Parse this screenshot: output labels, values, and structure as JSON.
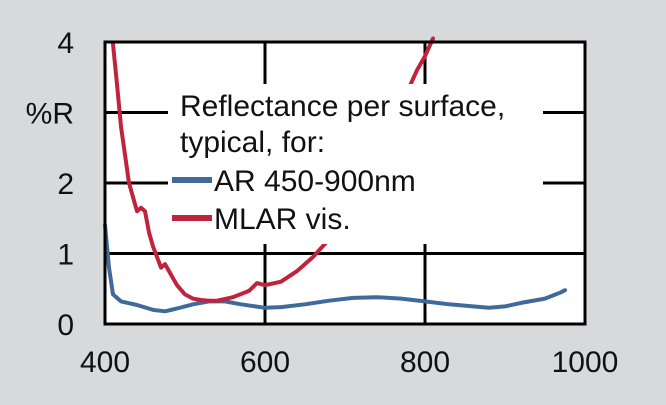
{
  "chart_data": {
    "type": "line",
    "title": "",
    "xlabel": "",
    "ylabel": "%R",
    "xlim": [
      400,
      1000
    ],
    "ylim": [
      0,
      4
    ],
    "x_ticks": [
      400,
      600,
      800,
      1000
    ],
    "y_tick_labels": [
      {
        "value": 4,
        "label": "4"
      },
      {
        "value": 3,
        "label": "%R"
      },
      {
        "value": 2,
        "label": "2"
      },
      {
        "value": 1,
        "label": "1"
      },
      {
        "value": 0,
        "label": "0"
      }
    ],
    "grid": true,
    "legend": {
      "title_lines": [
        "Reflectance per surface,",
        "typical, for:"
      ],
      "placement": "center"
    },
    "background_color": "#d8d9db",
    "plot_background": "#ffffff",
    "series": [
      {
        "name": "AR 450-900nm",
        "color": "#3f6a9a",
        "x": [
          400,
          405,
          410,
          420,
          440,
          460,
          475,
          490,
          510,
          530,
          550,
          570,
          600,
          620,
          650,
          680,
          710,
          740,
          770,
          800,
          830,
          860,
          880,
          900,
          920,
          950,
          970,
          975
        ],
        "y": [
          1.4,
          0.8,
          0.42,
          0.32,
          0.27,
          0.2,
          0.18,
          0.22,
          0.28,
          0.32,
          0.32,
          0.28,
          0.23,
          0.24,
          0.28,
          0.33,
          0.37,
          0.38,
          0.36,
          0.32,
          0.28,
          0.25,
          0.23,
          0.25,
          0.3,
          0.36,
          0.45,
          0.48
        ]
      },
      {
        "name": "MLAR vis.",
        "color": "#c1233e",
        "x": [
          410,
          415,
          420,
          425,
          430,
          440,
          445,
          450,
          455,
          460,
          470,
          475,
          480,
          490,
          500,
          510,
          520,
          530,
          540,
          560,
          580,
          590,
          600,
          620,
          640,
          660,
          680,
          700,
          720,
          740,
          760,
          780,
          790,
          800,
          810
        ],
        "y": [
          3.97,
          3.4,
          2.8,
          2.4,
          2.0,
          1.6,
          1.65,
          1.6,
          1.3,
          1.1,
          0.8,
          0.85,
          0.75,
          0.55,
          0.42,
          0.36,
          0.34,
          0.33,
          0.33,
          0.38,
          0.47,
          0.58,
          0.55,
          0.6,
          0.75,
          0.95,
          1.2,
          1.55,
          2.0,
          2.4,
          2.9,
          3.35,
          3.6,
          3.8,
          4.05
        ]
      }
    ]
  }
}
